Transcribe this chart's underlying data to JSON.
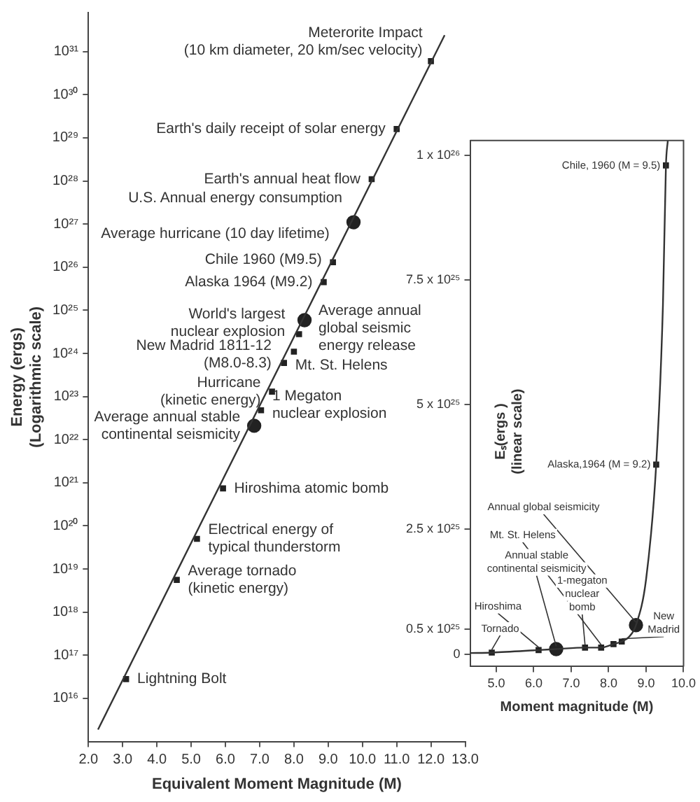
{
  "chart_data": [
    {
      "type": "scatter",
      "xlabel": "Equivalent Moment Magnitude (M)",
      "ylabel": "Energy (ergs)\n(Logarithmic scale)",
      "log": "y",
      "grid": false,
      "legend": false,
      "xlim": [
        2,
        13
      ],
      "xticks": [
        {
          "value": 2,
          "label": "2.0"
        },
        {
          "value": 3,
          "label": "3.0"
        },
        {
          "value": 4,
          "label": "4.0"
        },
        {
          "value": 5,
          "label": "5.0"
        },
        {
          "value": 6,
          "label": "6.0"
        },
        {
          "value": 7,
          "label": "7.0"
        },
        {
          "value": 8,
          "label": "8.0"
        },
        {
          "value": 9,
          "label": "9.0"
        },
        {
          "value": 10,
          "label": "10.0"
        },
        {
          "value": 11,
          "label": "11.0"
        },
        {
          "value": 12,
          "label": "12.0"
        },
        {
          "value": 13,
          "label": "13.0"
        }
      ],
      "ylim": [
        1000000000000000.0,
        8e+31
      ],
      "yticks": [
        {
          "value": 1e+16,
          "label": "10¹⁶"
        },
        {
          "value": 1e+17,
          "label": "10¹⁷"
        },
        {
          "value": 1e+18,
          "label": "10¹⁸"
        },
        {
          "value": 1e+19,
          "label": "10¹⁹"
        },
        {
          "value": 1e+20,
          "label": "10²⁰"
        },
        {
          "value": 1e+21,
          "label": "10²¹"
        },
        {
          "value": 1e+22,
          "label": "10²²"
        },
        {
          "value": 1e+23,
          "label": "10²³"
        },
        {
          "value": 1e+24,
          "label": "10²⁴"
        },
        {
          "value": 1e+25,
          "label": "10²⁵"
        },
        {
          "value": 1e+26,
          "label": "10²⁶"
        },
        {
          "value": 1e+27,
          "label": "10²⁷"
        },
        {
          "value": 1e+28,
          "label": "10²⁸"
        },
        {
          "value": 1e+29,
          "label": "10²⁹"
        },
        {
          "value": 1e+30,
          "label": "10³⁰"
        },
        {
          "value": 1e+31,
          "label": "10³¹"
        }
      ],
      "series": [
        {
          "type": "line",
          "color": "#333333",
          "marker": "none",
          "x": [
            2.28,
            12.4
          ],
          "values": [
            1900000000000000.0,
            2.4e+31
          ]
        },
        {
          "type": "scatter",
          "color": "#222222",
          "marker": "square",
          "x": [
            3.1,
            4.58,
            5.17,
            5.93,
            7.04,
            7.36,
            7.71,
            8.0,
            8.15,
            8.87,
            9.14,
            10.27,
            11.0,
            12.0
          ],
          "values": [
            2.8e+16,
            5.6e+18,
            5e+19,
            7.4e+20,
            4.8e+22,
            1.3e+23,
            6e+23,
            1.1e+24,
            2.8e+24,
            4.5e+25,
            1.3e+26,
            1.1e+28,
            1.6e+29,
            6e+30
          ]
        },
        {
          "type": "scatter",
          "color": "#222222",
          "marker": "circle",
          "x": [
            6.84,
            8.31,
            9.74
          ],
          "values": [
            2.1e+22,
            5.9e+24,
            1.1e+27
          ]
        }
      ],
      "annotations": [
        {
          "text": "Lightning Bolt",
          "x": 3.1,
          "y": 2.8e+16
        },
        {
          "text": "Average tornado\n(kinetic energy)",
          "x": 4.58,
          "y": 5.6e+18
        },
        {
          "text": "Electrical energy of\ntypical thunderstorm",
          "x": 5.17,
          "y": 5e+19
        },
        {
          "text": "Hiroshima atomic bomb",
          "x": 5.93,
          "y": 7.4e+20
        },
        {
          "text": "Average annual stable\ncontinental seismicity",
          "x": 6.84,
          "y": 2.1e+22
        },
        {
          "text": "1 Megaton\nnuclear explosion",
          "x": 7.04,
          "y": 4.8e+22
        },
        {
          "text": "Hurricane\n(kinetic energy)",
          "x": 7.36,
          "y": 1.3e+23
        },
        {
          "text": "Mt. St. Helens",
          "x": 7.71,
          "y": 6e+23
        },
        {
          "text": "New Madrid 1811-12\n(M8.0-8.3)",
          "x": 8.0,
          "y": 1.1e+24
        },
        {
          "text": "World's largest\nnuclear explosion",
          "x": 8.15,
          "y": 2.8e+24
        },
        {
          "text": "Average annual\nglobal seismic\nenergy release",
          "x": 8.31,
          "y": 5.9e+24
        },
        {
          "text": "Alaska 1964 (M9.2)",
          "x": 8.87,
          "y": 4.5e+25
        },
        {
          "text": "Chile 1960 (M9.5)",
          "x": 9.14,
          "y": 1.3e+26
        },
        {
          "text": "Average hurricane (10 day lifetime)",
          "x": 9.45,
          "y": 6e+26
        },
        {
          "text": "U.S. Annual energy consumption",
          "x": 9.74,
          "y": 1.1e+27
        },
        {
          "text": "Earth's annual heat flow",
          "x": 10.27,
          "y": 1.1e+28
        },
        {
          "text": "Earth's daily receipt of solar energy",
          "x": 11.0,
          "y": 1.6e+29
        },
        {
          "text": "Meterorite Impact\n(10 km diameter, 20 km/sec velocity)",
          "x": 12.0,
          "y": 6e+30
        }
      ]
    },
    {
      "type": "scatter",
      "xlabel": "Moment magnitude (M)",
      "ylabel": "Eₛ(ergs )\n(linear scale)",
      "grid": false,
      "legend": false,
      "xlim": [
        4.3,
        10
      ],
      "xticks": [
        {
          "value": 5,
          "label": "5.0"
        },
        {
          "value": 6,
          "label": "6.0"
        },
        {
          "value": 7,
          "label": "7.0"
        },
        {
          "value": 8,
          "label": "8.0"
        },
        {
          "value": 9,
          "label": "9.0"
        },
        {
          "value": 10,
          "label": "10.0"
        }
      ],
      "ylim": [
        -2.5e+24,
        1.03e+26
      ],
      "yticks": [
        0,
        {
          "value": 5e+24,
          "label": "0.5 x 10²⁵"
        },
        {
          "value": 2.5e+25,
          "label": "2.5 x 10²⁵"
        },
        {
          "value": 5e+25,
          "label": "5 x 10²⁵"
        },
        {
          "value": 7.5e+25,
          "label": "7.5 x 10²⁵"
        },
        {
          "value": 1e+26,
          "label": "1 x 10²⁶"
        }
      ],
      "series": [
        {
          "type": "line",
          "color": "#333333",
          "marker": "none",
          "x": [
            4.3,
            4.88,
            6.13,
            6.6,
            7.37,
            7.8,
            8.13,
            8.35,
            8.55,
            8.73,
            9.0,
            9.27,
            9.45,
            9.53,
            9.58
          ],
          "values": [
            2e+23,
            3e+23,
            8e+23,
            1e+24,
            1.3e+24,
            1.3e+24,
            2e+24,
            2.5e+24,
            3.5e+24,
            5.8e+24,
            1.5e+25,
            3.8e+25,
            7e+25,
            9.8e+25,
            1.03e+26
          ]
        },
        {
          "type": "scatter",
          "color": "#222222",
          "marker": "square",
          "x": [
            4.88,
            6.13,
            7.37,
            7.8,
            8.13,
            8.35,
            9.27,
            9.53
          ],
          "values": [
            3e+23,
            8e+23,
            1.3e+24,
            1.3e+24,
            2e+24,
            2.5e+24,
            3.8e+25,
            9.8e+25
          ]
        },
        {
          "type": "scatter",
          "color": "#222222",
          "marker": "circle",
          "x": [
            6.6,
            8.73
          ],
          "values": [
            1e+24,
            5.8e+24
          ]
        }
      ],
      "annotations": [
        {
          "text": "Chile, 1960 (M = 9.5)",
          "x": 9.53,
          "y": 9.8e+25
        },
        {
          "text": "Alaska,1964 (M = 9.2)",
          "x": 9.27,
          "y": 3.8e+25
        },
        {
          "text": "Annual global seismicity",
          "x": 8.73,
          "y": 5.8e+24
        },
        {
          "text": "Mt. St. Helens",
          "x": 7.8,
          "y": 1.3e+24
        },
        {
          "text": "Annual stable\ncontinental seismicity",
          "x": 6.6,
          "y": 1e+24
        },
        {
          "text": "1-megaton\nnuclear\nbomb",
          "x": 7.37,
          "y": 1.3e+24
        },
        {
          "text": "Hiroshima",
          "x": 6.13,
          "y": 8e+23
        },
        {
          "text": "Tornado",
          "x": 4.88,
          "y": 3e+23
        },
        {
          "text": "New\nMadrid",
          "x": 8.35,
          "y": 2.5e+24
        }
      ]
    }
  ]
}
